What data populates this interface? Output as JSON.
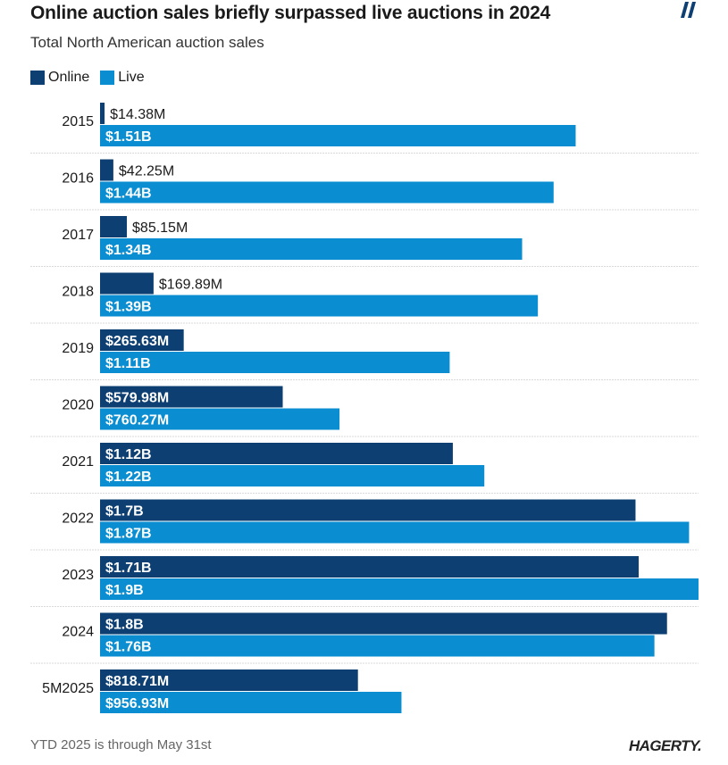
{
  "header": {
    "title": "Online auction sales briefly surpassed live auctions in 2024",
    "subtitle": "Total North American auction sales"
  },
  "legend": {
    "online_label": "Online",
    "live_label": "Live"
  },
  "colors": {
    "online": "#0d3f73",
    "live": "#0a8ed1",
    "divider": "#d9d9d9",
    "text": "#1a1a1a",
    "label_on_bar": "#ffffff"
  },
  "footer": {
    "note": "YTD 2025 is through May 31st",
    "brand": "HAGERTY."
  },
  "chart_data": {
    "type": "bar",
    "orientation": "horizontal",
    "title": "Online auction sales briefly surpassed live auctions in 2024",
    "subtitle": "Total North American auction sales",
    "xlabel": "",
    "ylabel": "",
    "units": "USD",
    "xlim": [
      0,
      1.9
    ],
    "grid": false,
    "legend_position": "top-left",
    "categories": [
      "2015",
      "2016",
      "2017",
      "2018",
      "2019",
      "2020",
      "2021",
      "2022",
      "2023",
      "2024",
      "5M2025"
    ],
    "series": [
      {
        "name": "Online",
        "values_billions": [
          0.01438,
          0.04225,
          0.08515,
          0.16989,
          0.26563,
          0.57998,
          1.12,
          1.7,
          1.71,
          1.8,
          0.81871
        ],
        "labels": [
          "$14.38M",
          "$42.25M",
          "$85.15M",
          "$169.89M",
          "$265.63M",
          "$579.98M",
          "$1.12B",
          "$1.7B",
          "$1.71B",
          "$1.8B",
          "$818.71M"
        ]
      },
      {
        "name": "Live",
        "values_billions": [
          1.51,
          1.44,
          1.34,
          1.39,
          1.11,
          0.76027,
          1.22,
          1.87,
          1.9,
          1.76,
          0.95693
        ],
        "labels": [
          "$1.51B",
          "$1.44B",
          "$1.34B",
          "$1.39B",
          "$1.11B",
          "$760.27M",
          "$1.22B",
          "$1.87B",
          "$1.9B",
          "$1.76B",
          "$956.93M"
        ]
      }
    ]
  }
}
